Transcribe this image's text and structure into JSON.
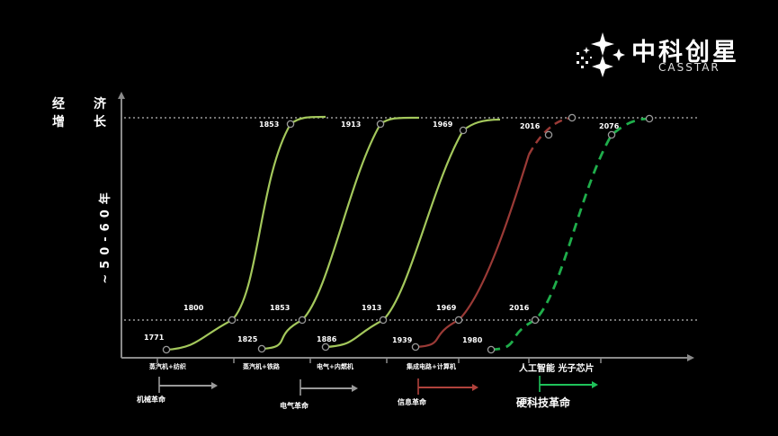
{
  "logo": {
    "cn": "中科创星",
    "en": "CASSTAR"
  },
  "chart_data": {
    "type": "line",
    "ylabel_chars_left": [
      "经",
      "增"
    ],
    "ylabel_chars_right": [
      "济",
      "长"
    ],
    "period_label": "~50-60年",
    "series": [
      {
        "name": "机械革命",
        "start": {
          "x": 1771,
          "label": "1771"
        },
        "mid": {
          "x": 1800,
          "label": "1800"
        },
        "top": {
          "label": "1853"
        },
        "color": "#a4c85c",
        "dashed": false
      },
      {
        "name": "电气革命",
        "start": {
          "label": "1825"
        },
        "mid": {
          "label": "1853"
        },
        "top": {
          "label": "1913"
        },
        "color": "#a4c85c",
        "dashed": false
      },
      {
        "name": "",
        "start": {
          "label": "1886"
        },
        "mid": {
          "label": "1913"
        },
        "top": {
          "label": "1969"
        },
        "color": "#a4c85c",
        "dashed": false
      },
      {
        "name": "信息革命",
        "start": {
          "label": "1939"
        },
        "mid": {
          "label": "1969"
        },
        "top": {
          "label": "2016"
        },
        "color": "#9a3a36",
        "dashed": true
      },
      {
        "name": "硬科技革命",
        "start": {
          "label": "1980"
        },
        "mid": {
          "label": "2016"
        },
        "top": {
          "label": "2076"
        },
        "color": "#1fae4b",
        "dashed": true
      }
    ],
    "x_tick_labels": [
      "蒸汽机+纺织",
      "蒸汽机+铁路",
      "电气+内燃机",
      "集成电路+计算机",
      "人工智能 光子芯片"
    ],
    "revolutions": [
      {
        "label": "机械革命",
        "color": "#9a9a9a"
      },
      {
        "label": "电气革命",
        "color": "#9a9a9a"
      },
      {
        "label": "信息革命",
        "color": "#b0423c"
      },
      {
        "label": "硬科技革命",
        "color": "#1fc25a"
      }
    ],
    "grid": false,
    "reference_lines": [
      "top",
      "bottom"
    ]
  }
}
